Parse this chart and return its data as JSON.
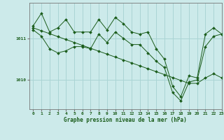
{
  "title": "Graphe pression niveau de la mer (hPa)",
  "bg_color": "#cceaea",
  "grid_color": "#aad4d4",
  "line_color": "#1a5c1a",
  "xlim": [
    -0.5,
    23
  ],
  "ylim": [
    1009.3,
    1011.85
  ],
  "yticks": [
    1010,
    1011
  ],
  "ytick_labels": [
    "1010",
    "1011"
  ],
  "xticks": [
    0,
    1,
    2,
    3,
    4,
    5,
    6,
    7,
    8,
    9,
    10,
    11,
    12,
    13,
    14,
    15,
    16,
    17,
    18,
    19,
    20,
    21,
    22,
    23
  ],
  "hours": [
    0,
    1,
    2,
    3,
    4,
    5,
    6,
    7,
    8,
    9,
    10,
    11,
    12,
    13,
    14,
    15,
    16,
    17,
    18,
    19,
    20,
    21,
    22,
    23
  ],
  "line_trend": [
    1011.25,
    1011.18,
    1011.11,
    1011.04,
    1010.97,
    1010.9,
    1010.83,
    1010.76,
    1010.69,
    1010.62,
    1010.55,
    1010.48,
    1010.41,
    1010.34,
    1010.27,
    1010.2,
    1010.13,
    1010.06,
    1009.99,
    1009.92,
    1009.92,
    1010.05,
    1010.15,
    1010.05
  ],
  "line_main": [
    1011.3,
    1011.6,
    1011.15,
    1011.25,
    1011.45,
    1011.15,
    1011.15,
    1011.15,
    1011.45,
    1011.2,
    1011.5,
    1011.35,
    1011.15,
    1011.1,
    1011.15,
    1010.75,
    1010.5,
    1009.85,
    1009.6,
    1010.1,
    1010.05,
    1011.1,
    1011.25,
    1011.1
  ],
  "line_lower": [
    1011.2,
    1011.05,
    1010.75,
    1010.65,
    1010.7,
    1010.8,
    1010.8,
    1010.75,
    1011.1,
    1010.9,
    1011.15,
    1011.0,
    1010.85,
    1010.85,
    1010.65,
    1010.45,
    1010.3,
    1009.7,
    1009.5,
    1009.95,
    1010.0,
    1010.8,
    1011.05,
    1011.1
  ]
}
